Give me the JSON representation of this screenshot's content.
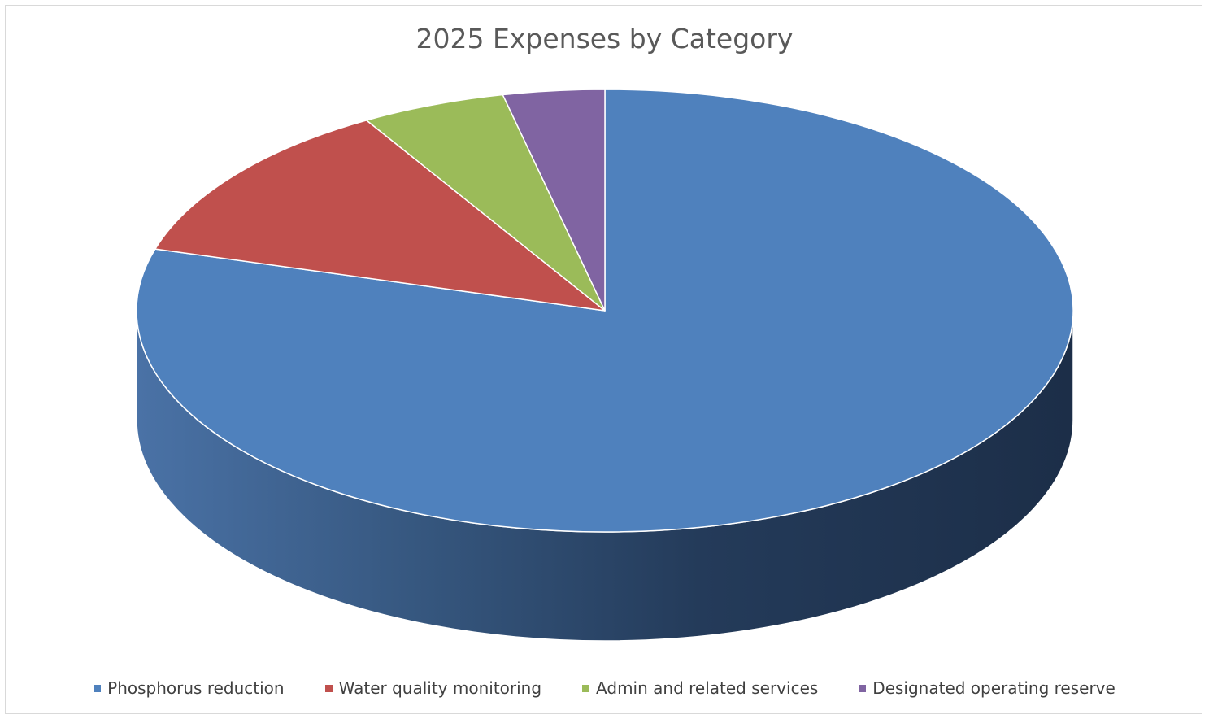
{
  "chart_data": {
    "type": "pie",
    "style": "3d",
    "title": "2025 Expenses by Category",
    "categories": [
      "Phosphorus reduction",
      "Water quality monitoring",
      "Admin and related services",
      "Designated operating reserve"
    ],
    "values": [
      79.5,
      12.0,
      5.0,
      3.5
    ],
    "unit": "percent (estimated share)",
    "colors": [
      "#4f81bd",
      "#c0504d",
      "#9bbb59",
      "#8064a2"
    ],
    "legend_position": "bottom",
    "start_angle": "12 o'clock, clockwise"
  }
}
